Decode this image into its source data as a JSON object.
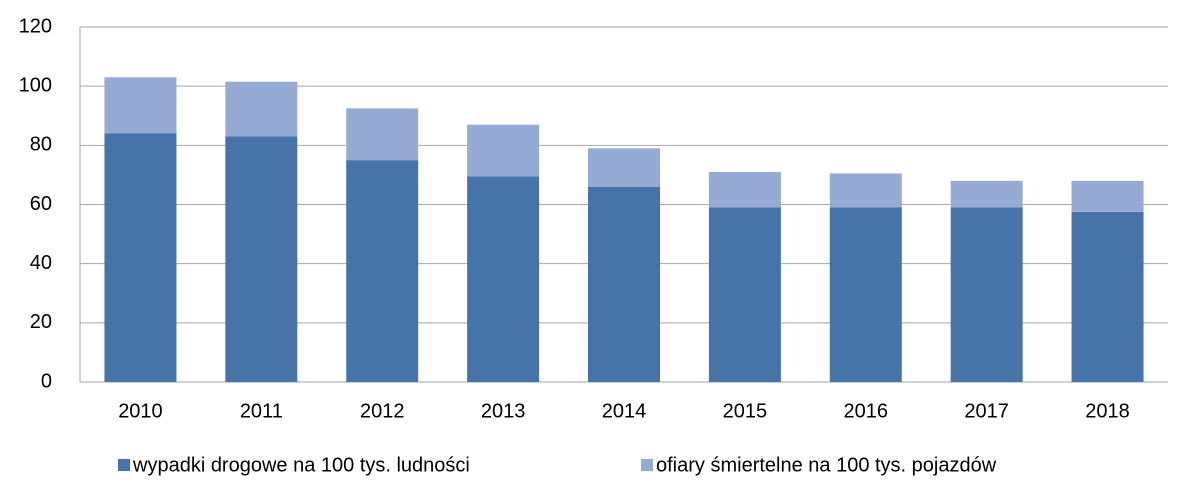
{
  "chart_data": {
    "type": "stacked_bar",
    "categories": [
      "2010",
      "2011",
      "2012",
      "2013",
      "2014",
      "2015",
      "2016",
      "2017",
      "2018"
    ],
    "series": [
      {
        "name": "wypadki drogowe na 100 tys. ludności",
        "color": "#4673a8",
        "values": [
          84,
          83,
          75,
          69.5,
          66,
          59,
          59,
          59,
          57.5
        ]
      },
      {
        "name": "ofiary śmiertelne na 100 tys. pojazdów",
        "color": "#95abd3",
        "values": [
          19,
          18.5,
          17.5,
          17.5,
          13,
          12,
          11.5,
          9,
          10.5
        ]
      }
    ],
    "ylim": [
      0,
      120
    ],
    "yticks": [
      0,
      20,
      40,
      60,
      80,
      100,
      120
    ],
    "grid": true,
    "legend": "bottom"
  }
}
